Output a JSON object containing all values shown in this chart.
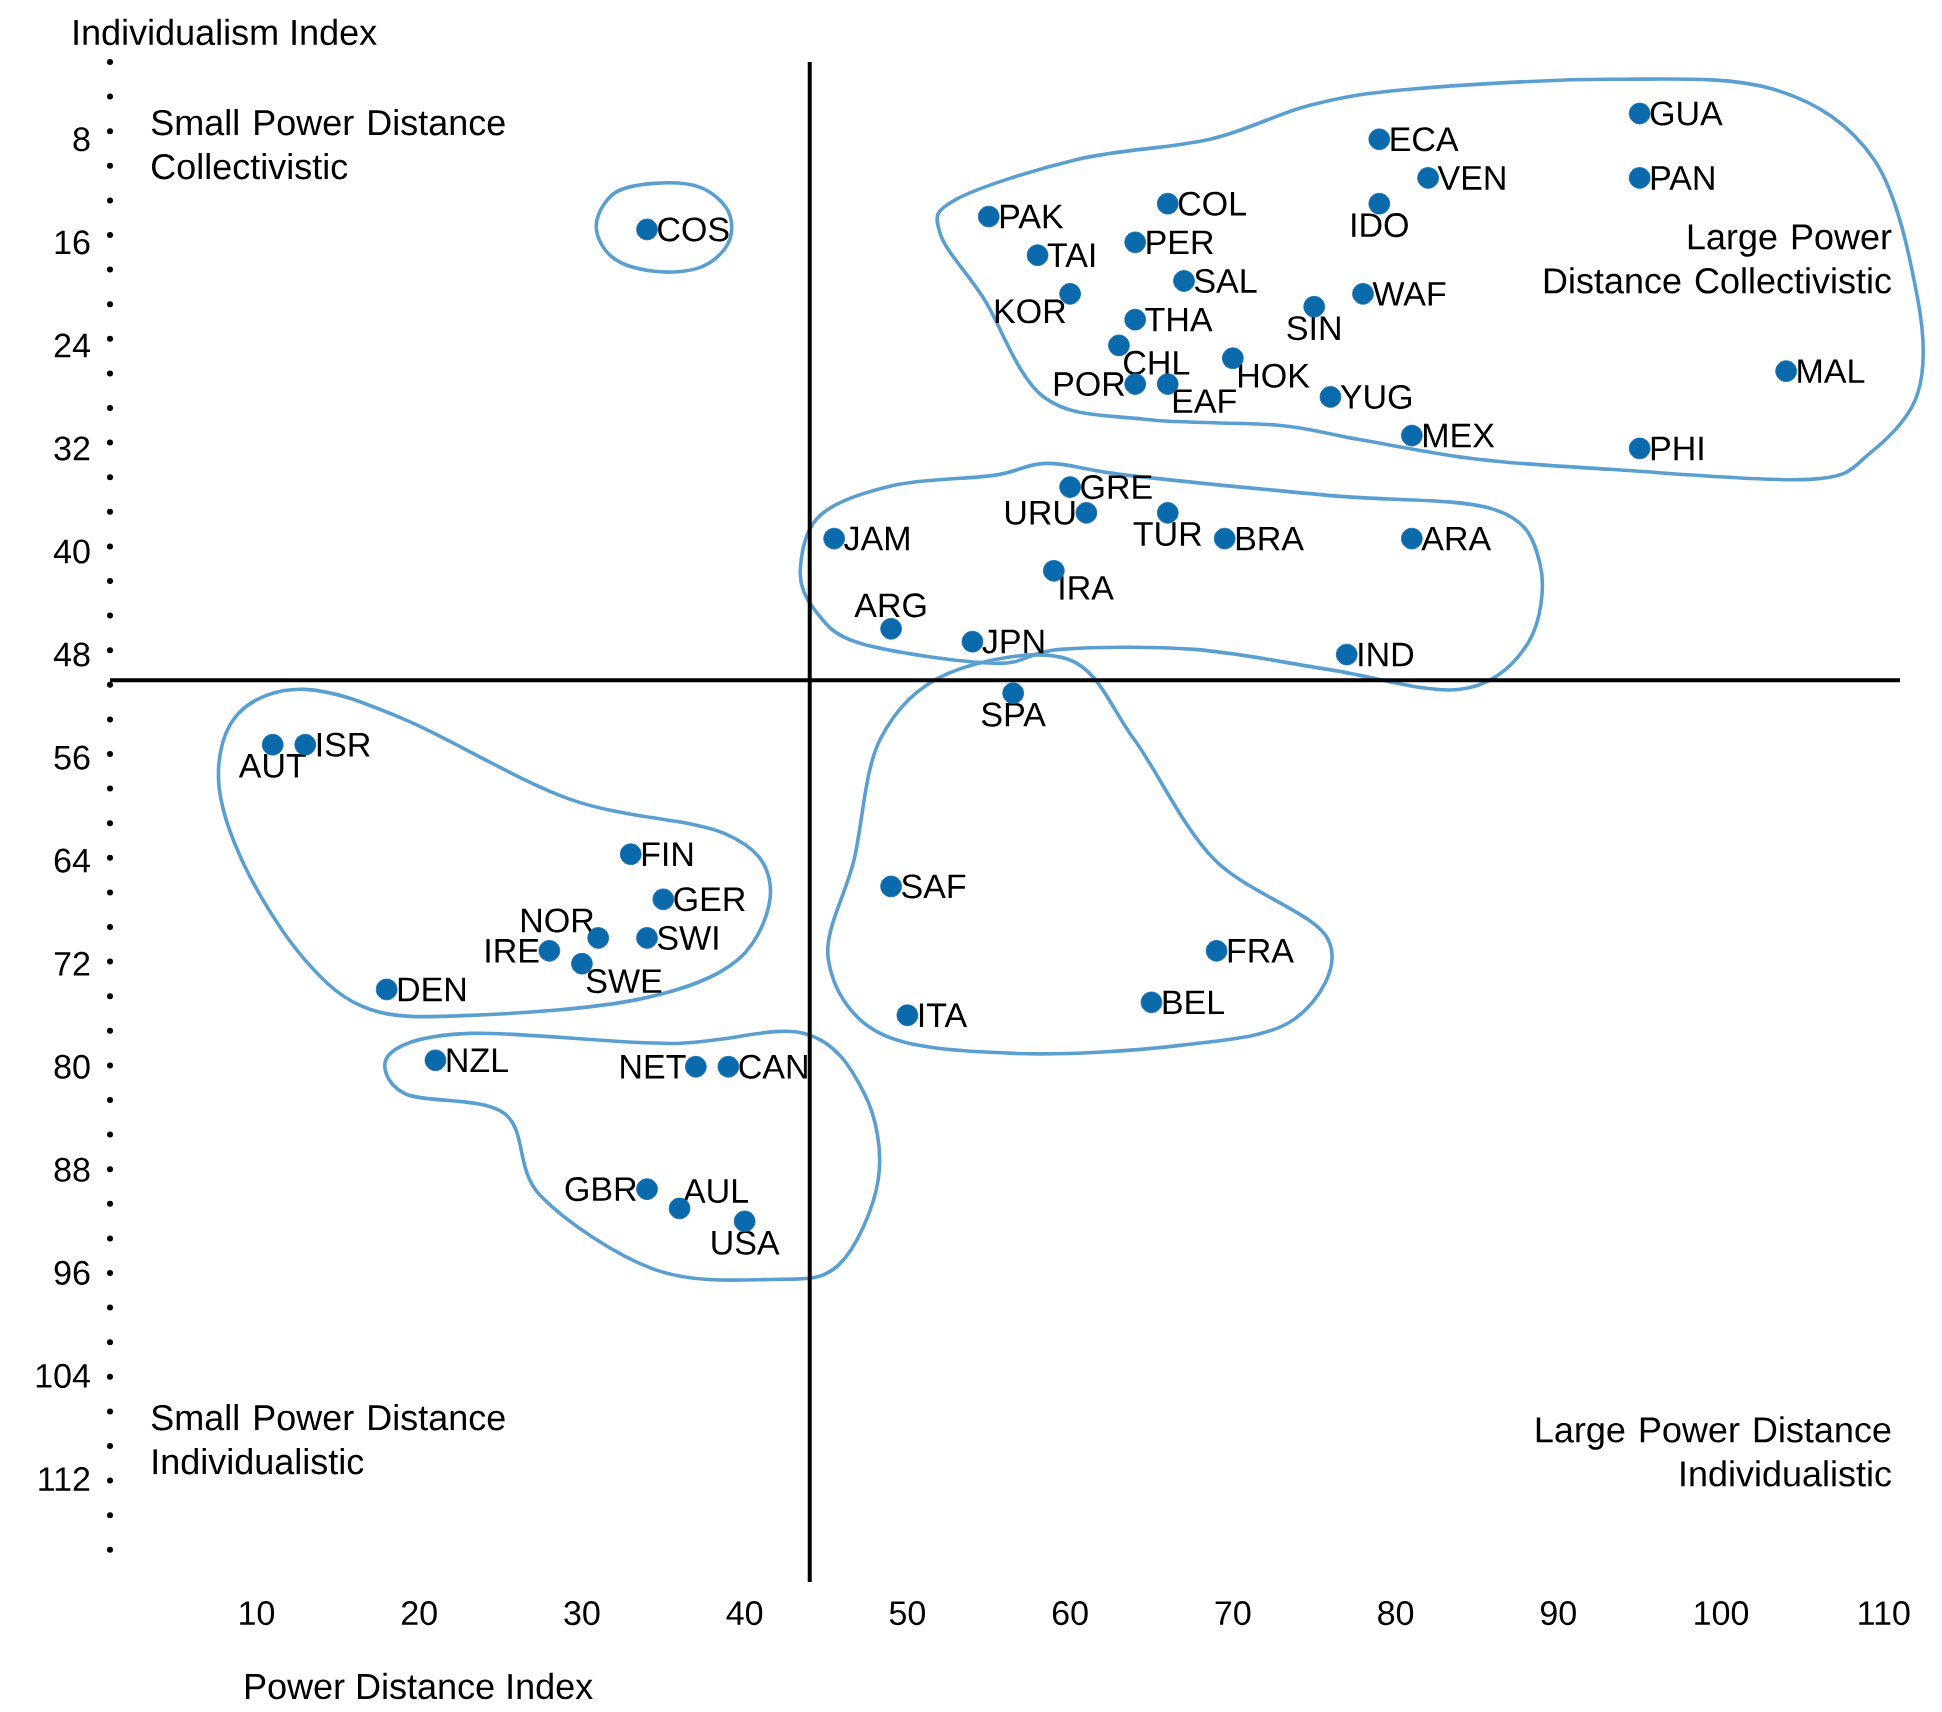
{
  "chart_data": {
    "type": "scatter",
    "xlabel": "Power Distance Index",
    "ylabel": "Individualism Index",
    "xlim": [
      1,
      111
    ],
    "ylim": [
      120,
      2
    ],
    "xticks": [
      10,
      20,
      30,
      40,
      50,
      60,
      70,
      80,
      90,
      100,
      110
    ],
    "yticks": [
      8,
      16,
      24,
      32,
      40,
      48,
      56,
      64,
      72,
      80,
      88,
      96,
      104,
      112
    ],
    "marker": "circle",
    "series": [
      {
        "color": "#0b6aab",
        "x": [
          95,
          95,
          79,
          82,
          79,
          66,
          55,
          64,
          58,
          67,
          60,
          64,
          75,
          78,
          63,
          70,
          64,
          66,
          76,
          81,
          104,
          95,
          34,
          60,
          61,
          66,
          45.5,
          69.5,
          81,
          59,
          49,
          54,
          77,
          56.5,
          49,
          69,
          65,
          50,
          11,
          13,
          33,
          35,
          31,
          34,
          28,
          30,
          18,
          21,
          37,
          39,
          34,
          36,
          40
        ],
        "values": [
          6,
          11,
          8,
          11,
          13,
          13,
          14,
          16,
          17,
          19,
          20,
          22,
          21,
          20,
          24,
          25,
          27,
          27,
          28,
          31,
          26,
          32,
          15,
          35,
          37,
          37,
          39,
          39,
          39,
          41.5,
          46,
          47,
          48,
          51,
          66,
          71,
          75,
          76,
          55,
          55,
          63.5,
          67,
          70,
          70,
          71,
          72,
          74,
          79.5,
          80,
          80,
          89.5,
          91,
          92
        ]
      }
    ],
    "ref_lines": [
      {
        "axis": "x",
        "value": 44,
        "color": "#000000"
      },
      {
        "axis": "y",
        "value": 50,
        "color": "#000000"
      }
    ],
    "annotations": [
      "Small Power Distance Collectivistic",
      "Large Power Distance Collectivistic",
      "Small Power Distance Individualistic",
      "Large Power Distance Individualistic",
      {
        "text": "GUA",
        "x": 95,
        "y": 6
      },
      {
        "text": "PAN",
        "x": 95,
        "y": 11
      },
      {
        "text": "ECA",
        "x": 79,
        "y": 8
      },
      {
        "text": "VEN",
        "x": 82,
        "y": 11
      },
      {
        "text": "IDO",
        "x": 79,
        "y": 13
      },
      {
        "text": "COL",
        "x": 66,
        "y": 13
      },
      {
        "text": "PAK",
        "x": 55,
        "y": 14
      },
      {
        "text": "PER",
        "x": 64,
        "y": 16
      },
      {
        "text": "TAI",
        "x": 58,
        "y": 17
      },
      {
        "text": "SAL",
        "x": 67,
        "y": 19
      },
      {
        "text": "KOR",
        "x": 60,
        "y": 20
      },
      {
        "text": "THA",
        "x": 64,
        "y": 22
      },
      {
        "text": "SIN",
        "x": 75,
        "y": 21
      },
      {
        "text": "WAF",
        "x": 78,
        "y": 20
      },
      {
        "text": "CHL",
        "x": 63,
        "y": 24
      },
      {
        "text": "HOK",
        "x": 70,
        "y": 25
      },
      {
        "text": "POR",
        "x": 64,
        "y": 27
      },
      {
        "text": "EAF",
        "x": 66,
        "y": 27
      },
      {
        "text": "YUG",
        "x": 76,
        "y": 28
      },
      {
        "text": "MEX",
        "x": 81,
        "y": 31
      },
      {
        "text": "MAL",
        "x": 104,
        "y": 26
      },
      {
        "text": "PHI",
        "x": 95,
        "y": 32
      },
      {
        "text": "COS",
        "x": 34,
        "y": 15
      },
      {
        "text": "GRE",
        "x": 60,
        "y": 35
      },
      {
        "text": "URU",
        "x": 61,
        "y": 37
      },
      {
        "text": "TUR",
        "x": 66,
        "y": 37
      },
      {
        "text": "JAM",
        "x": 45.5,
        "y": 39
      },
      {
        "text": "BRA",
        "x": 69.5,
        "y": 39
      },
      {
        "text": "ARA",
        "x": 81,
        "y": 39
      },
      {
        "text": "IRA",
        "x": 59,
        "y": 41.5
      },
      {
        "text": "ARG",
        "x": 49,
        "y": 46
      },
      {
        "text": "JPN",
        "x": 54,
        "y": 47
      },
      {
        "text": "IND",
        "x": 77,
        "y": 48
      },
      {
        "text": "SPA",
        "x": 56.5,
        "y": 51
      },
      {
        "text": "SAF",
        "x": 49,
        "y": 66
      },
      {
        "text": "FRA",
        "x": 69,
        "y": 71
      },
      {
        "text": "BEL",
        "x": 65,
        "y": 75
      },
      {
        "text": "ITA",
        "x": 50,
        "y": 76
      },
      {
        "text": "AUT",
        "x": 11,
        "y": 55
      },
      {
        "text": "ISR",
        "x": 13,
        "y": 55
      },
      {
        "text": "FIN",
        "x": 33,
        "y": 63.5
      },
      {
        "text": "GER",
        "x": 35,
        "y": 67
      },
      {
        "text": "NOR",
        "x": 31,
        "y": 70
      },
      {
        "text": "SWI",
        "x": 34,
        "y": 70
      },
      {
        "text": "IRE",
        "x": 28,
        "y": 71
      },
      {
        "text": "SWE",
        "x": 30,
        "y": 72
      },
      {
        "text": "DEN",
        "x": 18,
        "y": 74
      },
      {
        "text": "NZL",
        "x": 21,
        "y": 79.5
      },
      {
        "text": "NET",
        "x": 37,
        "y": 80
      },
      {
        "text": "CAN",
        "x": 39,
        "y": 80
      },
      {
        "text": "GBR",
        "x": 34,
        "y": 89.5
      },
      {
        "text": "AUL",
        "x": 36,
        "y": 91
      },
      {
        "text": "USA",
        "x": 40,
        "y": 92
      }
    ]
  }
}
